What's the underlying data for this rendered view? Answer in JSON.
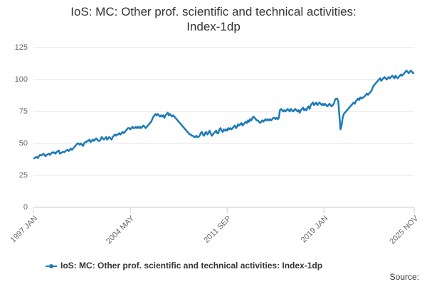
{
  "chart_data": {
    "type": "line",
    "title": "IoS: MC: Other prof. scientific and technical activities: Index-1dp",
    "source_label": "Source:",
    "categories": [
      "1997 JAN",
      null,
      null,
      null,
      null,
      null,
      null,
      null,
      null,
      null,
      null,
      null,
      null,
      null,
      null,
      null,
      null,
      null,
      null,
      null,
      null,
      null,
      null,
      null,
      null,
      null,
      null,
      null,
      null,
      null,
      null,
      null,
      null,
      null,
      null,
      null,
      null,
      null,
      null,
      null,
      null,
      null,
      null,
      null,
      null,
      null,
      null,
      null,
      null,
      null,
      null,
      null,
      null,
      null,
      null,
      null,
      null,
      null,
      null,
      null,
      null,
      null,
      null,
      null,
      null,
      null,
      null,
      null,
      null,
      null,
      null,
      null,
      null,
      null,
      null,
      null,
      null,
      null,
      null,
      null,
      null,
      null,
      null,
      null,
      null,
      null,
      null,
      null,
      "2004 MAY",
      null,
      null,
      null,
      null,
      null,
      null,
      null,
      null,
      null,
      null,
      null,
      null,
      null,
      null,
      null,
      null,
      null,
      null,
      null,
      null,
      null,
      null,
      null,
      null,
      null,
      null,
      null,
      null,
      null,
      null,
      null,
      null,
      null,
      null,
      null,
      null,
      null,
      null,
      null,
      null,
      null,
      null,
      null,
      null,
      null,
      null,
      null,
      null,
      null,
      null,
      null,
      null,
      null,
      null,
      null,
      null,
      null,
      null,
      null,
      null,
      null,
      null,
      null,
      null,
      null,
      null,
      null,
      null,
      null,
      null,
      null,
      null,
      null,
      null,
      null,
      null,
      null,
      null,
      null,
      null,
      null,
      null,
      null,
      null,
      null,
      null,
      null,
      "2011 SEP",
      null,
      null,
      null,
      null,
      null,
      null,
      null,
      null,
      null,
      null,
      null,
      null,
      null,
      null,
      null,
      null,
      null,
      null,
      null,
      null,
      null,
      null,
      null,
      null,
      null,
      null,
      null,
      null,
      null,
      null,
      null,
      null,
      null,
      null,
      null,
      null,
      null,
      null,
      null,
      null,
      null,
      null,
      null,
      null,
      null,
      null,
      null,
      null,
      null,
      null,
      null,
      null,
      null,
      null,
      null,
      null,
      null,
      null,
      null,
      null,
      null,
      null,
      null,
      null,
      null,
      null,
      null,
      null,
      null,
      null,
      null,
      null,
      null,
      null,
      null,
      null,
      null,
      null,
      null,
      null,
      null,
      null,
      null,
      null,
      null,
      null,
      null,
      "2019 JAN",
      null,
      null,
      null,
      null,
      null,
      null,
      null,
      null,
      null,
      null,
      null,
      null,
      null,
      null,
      null,
      null,
      null,
      null,
      null,
      null,
      null,
      null,
      null,
      null,
      null,
      null,
      null,
      null,
      null,
      null,
      null,
      null,
      null,
      null,
      null,
      null,
      null,
      null,
      null,
      null,
      null,
      null,
      null,
      null,
      null,
      null,
      null,
      null,
      null,
      null,
      null,
      null,
      null,
      null,
      null,
      null,
      null,
      null,
      null,
      null,
      null,
      null,
      null,
      null,
      null,
      null,
      null,
      null,
      null,
      null,
      null,
      null,
      null,
      null,
      null,
      null,
      null,
      null,
      null,
      null,
      null,
      "2025 NOV"
    ],
    "series": [
      {
        "name": "IoS: MC: Other prof. scientific and technical activities: Index-1dp",
        "color": "#1c7bb8",
        "values": [
          38,
          38.5,
          39,
          39.5,
          38.5,
          40,
          41,
          40.5,
          41,
          42,
          41,
          40,
          41,
          41.5,
          42,
          41,
          42,
          43,
          42.5,
          43,
          42,
          43,
          44,
          44.5,
          42,
          42.5,
          43,
          43.5,
          43,
          44,
          44.5,
          45,
          44,
          45,
          46,
          45,
          46,
          47,
          48,
          49,
          50,
          50,
          49,
          50,
          49,
          48,
          50,
          51,
          51,
          52,
          52,
          53,
          51,
          52,
          53,
          52,
          53,
          54,
          53,
          52,
          52,
          53,
          55,
          54,
          53,
          54,
          55,
          53,
          54,
          55,
          54,
          53,
          55,
          56,
          57,
          56,
          57,
          57,
          58,
          57,
          58,
          59,
          58,
          59,
          60,
          61,
          62,
          62,
          61,
          62,
          63,
          62,
          62,
          63,
          62,
          63,
          62,
          63,
          62,
          63,
          64,
          63,
          62,
          63,
          64,
          65,
          66,
          67,
          69,
          71,
          72,
          73,
          72,
          73,
          72,
          71,
          72,
          71,
          72,
          70,
          72,
          73,
          74,
          72,
          73,
          72,
          71,
          72,
          71,
          70,
          69,
          68,
          67,
          66,
          65,
          64,
          63,
          62,
          61,
          60,
          59,
          58,
          57,
          57,
          56,
          56,
          55,
          55,
          56,
          55,
          55,
          56,
          58,
          59,
          57,
          56,
          58,
          59,
          57,
          58,
          60,
          58,
          56,
          57,
          58,
          59,
          60,
          58,
          58,
          61,
          62,
          60,
          59,
          61,
          60,
          61,
          60,
          62,
          61,
          62,
          61,
          62,
          63,
          64,
          62,
          63,
          65,
          64,
          65,
          66,
          64,
          65,
          66,
          67,
          66,
          68,
          67,
          69,
          68,
          70,
          71,
          70,
          69,
          68,
          68,
          67,
          66,
          67,
          68,
          67,
          68,
          69,
          68,
          69,
          68,
          69,
          68,
          69,
          70,
          70,
          69,
          70,
          69,
          70,
          76,
          77,
          76,
          75,
          76,
          75,
          76,
          77,
          76,
          75,
          77,
          76,
          75,
          76,
          77,
          76,
          75,
          76,
          74,
          76,
          77,
          78,
          76,
          77,
          76,
          78,
          79,
          77,
          80,
          81,
          82,
          80,
          81,
          82,
          80,
          81,
          82,
          81,
          80,
          81,
          80,
          81,
          80,
          79,
          80,
          81,
          80,
          79,
          80,
          81,
          84,
          85,
          85,
          83,
          72,
          61,
          64,
          70,
          73,
          74,
          75,
          76,
          77,
          78,
          79,
          80,
          81,
          82,
          81,
          83,
          84,
          85,
          84,
          86,
          85,
          86,
          86,
          87,
          88,
          89,
          88,
          89,
          90,
          91,
          93,
          95,
          96,
          97,
          98,
          99,
          100,
          101,
          99,
          100,
          101,
          102,
          101,
          100,
          101,
          102,
          101,
          102,
          103,
          102,
          101,
          103,
          102,
          101,
          102,
          103,
          104,
          103,
          104,
          105,
          106,
          107,
          106,
          105,
          106,
          107,
          106,
          105,
          105
        ]
      }
    ],
    "ylim": [
      0,
      125
    ],
    "yticks": [
      0,
      25,
      50,
      75,
      100,
      125
    ],
    "grid": true
  }
}
